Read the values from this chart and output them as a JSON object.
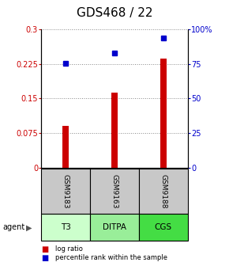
{
  "title": "GDS468 / 22",
  "samples": [
    "GSM9183",
    "GSM9163",
    "GSM9188"
  ],
  "agents": [
    "T3",
    "DITPA",
    "CGS"
  ],
  "agent_colors": [
    "#ccffcc",
    "#99ee99",
    "#44dd44"
  ],
  "log_ratios": [
    0.09,
    0.162,
    0.236
  ],
  "percentile_ranks": [
    75.5,
    83.0,
    93.5
  ],
  "left_ylim": [
    0,
    0.3
  ],
  "right_ylim": [
    0,
    100
  ],
  "left_yticks": [
    0,
    0.075,
    0.15,
    0.225,
    0.3
  ],
  "right_yticks": [
    0,
    25,
    50,
    75,
    100
  ],
  "left_yticklabels": [
    "0",
    "0.075",
    "0.15",
    "0.225",
    "0.3"
  ],
  "right_yticklabels": [
    "0",
    "25",
    "50",
    "75",
    "100%"
  ],
  "bar_color": "#cc0000",
  "dot_color": "#0000cc",
  "grid_color": "#888888",
  "sample_bg_color": "#c8c8c8",
  "title_fontsize": 11,
  "bar_width": 0.12
}
